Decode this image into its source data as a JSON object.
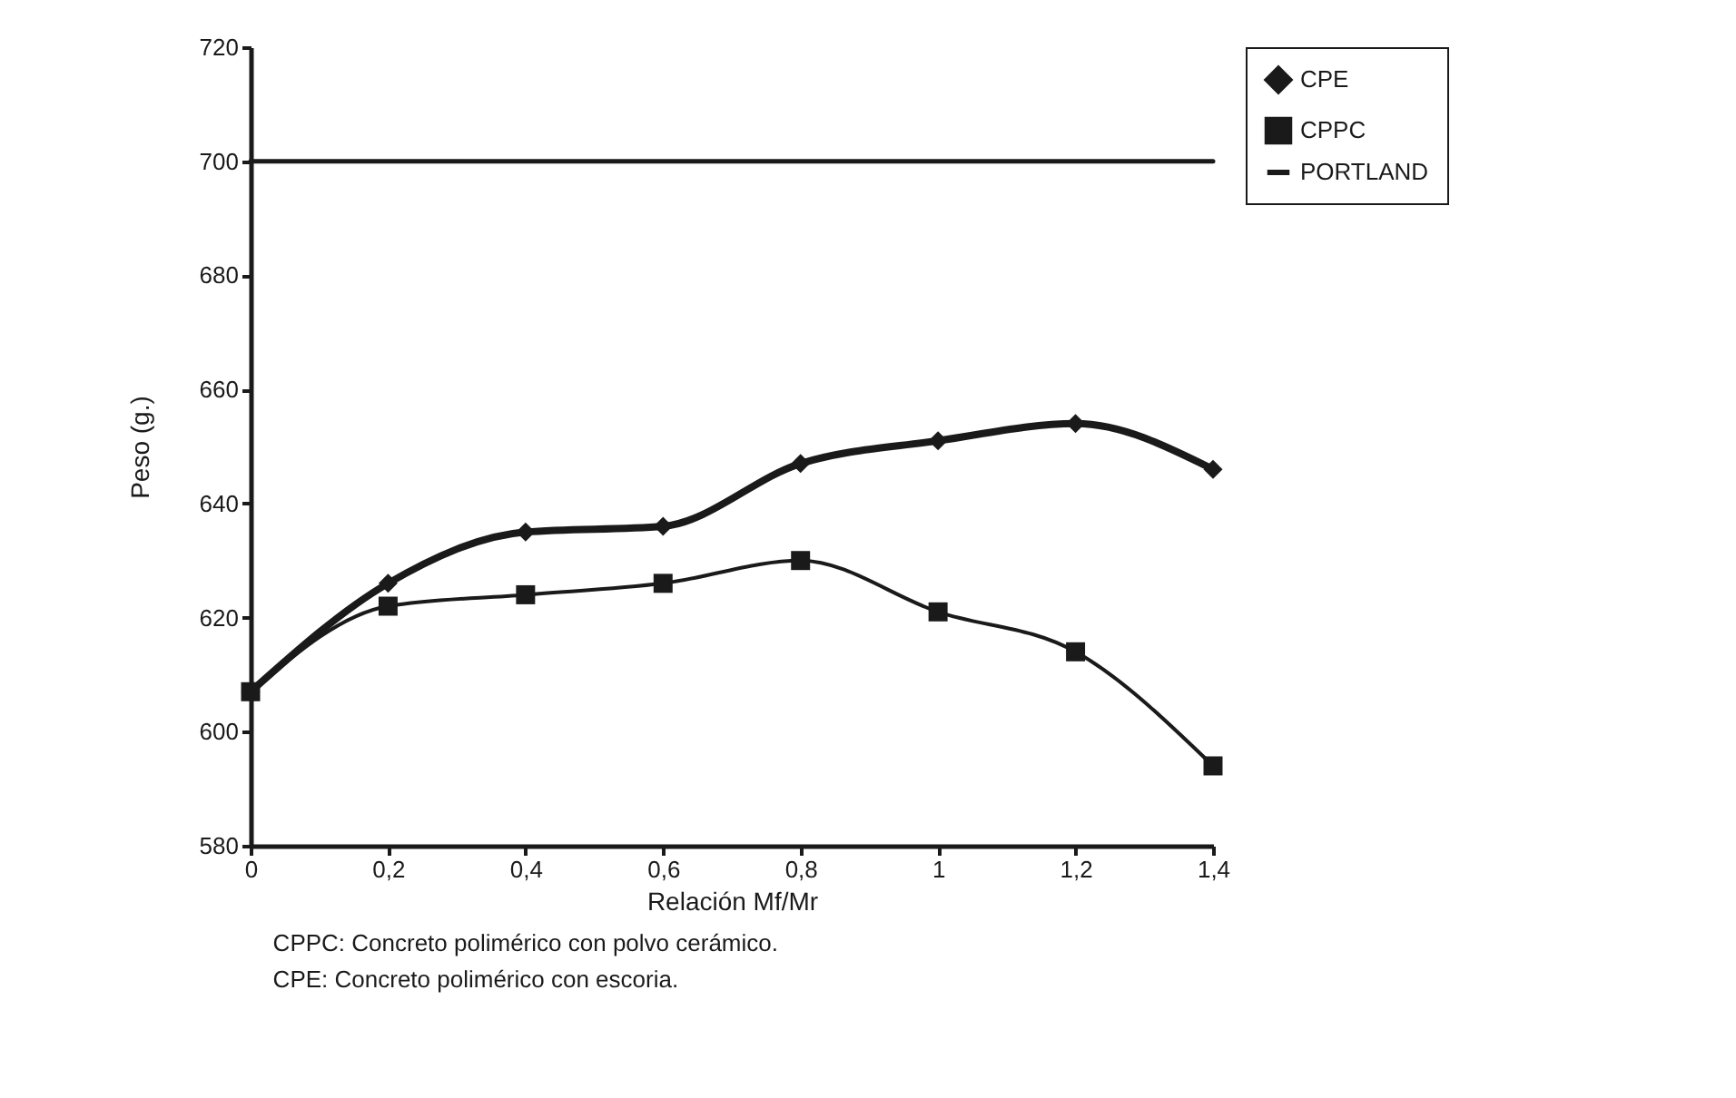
{
  "chart_data": {
    "type": "line",
    "xlabel": "Relación Mf/Mr",
    "ylabel": "Peso (g.)",
    "x": [
      0,
      0.2,
      0.4,
      0.6,
      0.8,
      1,
      1.2,
      1.4
    ],
    "series": [
      {
        "name": "CPE",
        "color": "#1a1a1a",
        "marker": "diamond",
        "values": [
          607,
          626,
          635,
          636,
          647,
          651,
          654,
          646
        ]
      },
      {
        "name": "CPPC",
        "color": "#1a1a1a",
        "marker": "square",
        "values": [
          607,
          622,
          624,
          626,
          630,
          621,
          614,
          594
        ]
      },
      {
        "name": "PORTLAND",
        "color": "#1a1a1a",
        "marker": "none",
        "values": [
          700,
          700,
          700,
          700,
          700,
          700,
          700,
          700
        ]
      }
    ],
    "xlim": [
      0,
      1.4
    ],
    "xticks": [
      0,
      {
        "value": 0.2,
        "label": "0,2"
      },
      {
        "value": 0.4,
        "label": "0,4"
      },
      {
        "value": 0.6,
        "label": "0,6"
      },
      {
        "value": 0.8,
        "label": "0,8"
      },
      1,
      {
        "value": 1.2,
        "label": "1,2"
      },
      {
        "value": 1.4,
        "label": "1,4"
      }
    ],
    "ylim": [
      580,
      720
    ],
    "yticks": [
      580,
      600,
      620,
      640,
      660,
      680,
      700,
      720
    ],
    "grid": false,
    "legend": "right",
    "annotations": [
      "CPPC:   Concreto polimérico con polvo cerámico.",
      "CPE:     Concreto polimérico con escoria."
    ]
  }
}
